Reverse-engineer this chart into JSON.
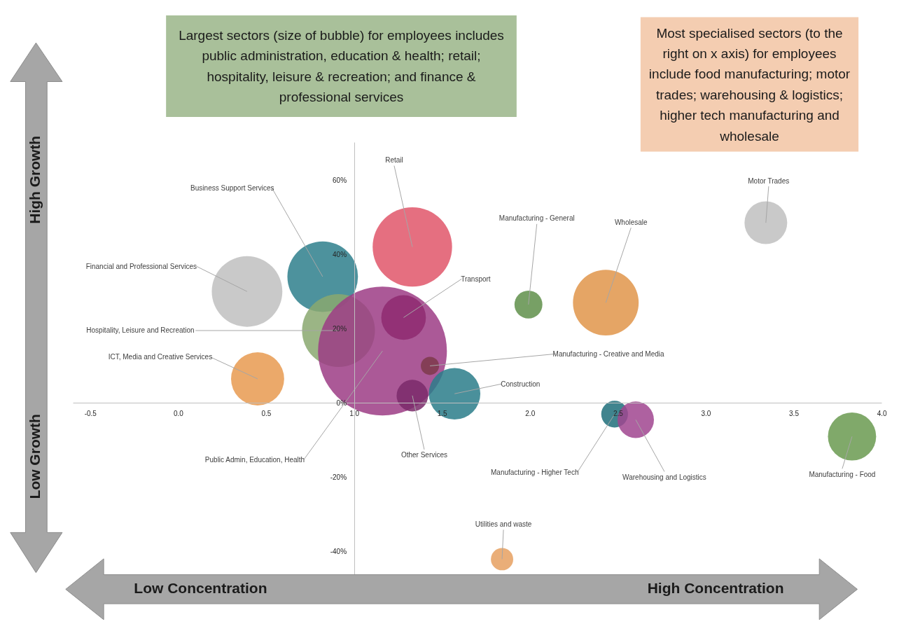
{
  "chart_data": {
    "type": "bubble",
    "x": [
      0.39,
      0.82,
      0.91,
      1.16,
      1.33,
      1.28,
      0.45,
      1.43,
      1.57,
      1.33,
      1.99,
      2.43,
      3.34,
      2.48,
      2.6,
      3.83,
      1.84
    ],
    "series": [
      {
        "colors": [
          "#bfbfbf",
          "#2e7f8c",
          "#8aa870",
          "#9c3c85",
          "#e0566a",
          "#8e2a70",
          "#e89a50",
          "#7c3a4a",
          "#2a7d8a",
          "#7a2a6a",
          "#5f8f4a",
          "#e0954a",
          "#bfbfbf",
          "#1f6e7a",
          "#a0458f",
          "#6a9a50",
          "#e6a060"
        ],
        "values": [
          30,
          34,
          19.5,
          14,
          42,
          23,
          6.5,
          10,
          2.5,
          2,
          26.5,
          27,
          48.5,
          -3,
          -4.5,
          -9,
          -42
        ],
        "sizes": [
          0.3,
          0.3,
          0.32,
          1,
          0.38,
          0.12,
          0.17,
          0.02,
          0.16,
          0.06,
          0.047,
          0.26,
          0.11,
          0.043,
          0.08,
          0.14,
          0.03
        ]
      }
    ],
    "xlim": [
      -0.6,
      4.0
    ],
    "xticks": [
      {
        "value": -0.5,
        "label": "-0.5"
      },
      {
        "value": 0,
        "label": "0.0"
      },
      {
        "value": 0.5,
        "label": "0.5"
      },
      {
        "value": 1,
        "label": "1.0"
      },
      {
        "value": 1.5,
        "label": "1.5"
      },
      {
        "value": 2,
        "label": "2.0"
      },
      {
        "value": 2.5,
        "label": "2.5"
      },
      {
        "value": 3,
        "label": "3.0"
      },
      {
        "value": 3.5,
        "label": "3.5"
      },
      {
        "value": 4,
        "label": "4.0"
      }
    ],
    "ylim": [
      -50,
      70
    ],
    "yticks": [
      {
        "value": -40,
        "label": "-40%"
      },
      {
        "value": -20,
        "label": "-20%"
      },
      {
        "value": 0,
        "label": "0%"
      },
      {
        "value": 20,
        "label": "20%"
      },
      {
        "value": 40,
        "label": "40%"
      },
      {
        "value": 60,
        "label": "60%"
      }
    ],
    "annotations": [
      "Largest sectors (size of bubble) for employees includes public administration, education & health; retail; hospitality, leisure & recreation; and finance & professional services",
      "Most specialised sectors (to the right on x axis) for employees include food manufacturing; motor trades; warehousing & logistics; higher tech manufacturing and wholesale",
      "High Growth",
      "Low Growth",
      "Low Concentration",
      "High Concentration",
      {
        "text": "Financial and Professional Services",
        "x": 0.39,
        "y": 30
      },
      {
        "text": "Business Support Services",
        "x": 0.82,
        "y": 34
      },
      {
        "text": "Hospitality, Leisure and Recreation",
        "x": 0.91,
        "y": 19.5
      },
      {
        "text": "Public Admin, Education, Health",
        "x": 1.16,
        "y": 14
      },
      {
        "text": "Retail",
        "x": 1.33,
        "y": 42
      },
      {
        "text": "Transport",
        "x": 1.28,
        "y": 23
      },
      {
        "text": "ICT, Media and Creative Services",
        "x": 0.45,
        "y": 6.5
      },
      {
        "text": "Manufacturing - Creative and Media",
        "x": 1.43,
        "y": 10
      },
      {
        "text": "Construction",
        "x": 1.57,
        "y": 2.5
      },
      {
        "text": "Other Services",
        "x": 1.33,
        "y": 2
      },
      {
        "text": "Manufacturing - General",
        "x": 1.99,
        "y": 26.5
      },
      {
        "text": "Wholesale",
        "x": 2.43,
        "y": 27
      },
      {
        "text": "Motor Trades",
        "x": 3.34,
        "y": 48.5
      },
      {
        "text": "Manufacturing - Higher Tech",
        "x": 2.48,
        "y": -3
      },
      {
        "text": "Warehousing and Logistics",
        "x": 2.6,
        "y": -4.5
      },
      {
        "text": "Manufacturing - Food",
        "x": 3.83,
        "y": -9
      },
      {
        "text": "Utilities and waste",
        "x": 1.84,
        "y": -42
      }
    ]
  }
}
